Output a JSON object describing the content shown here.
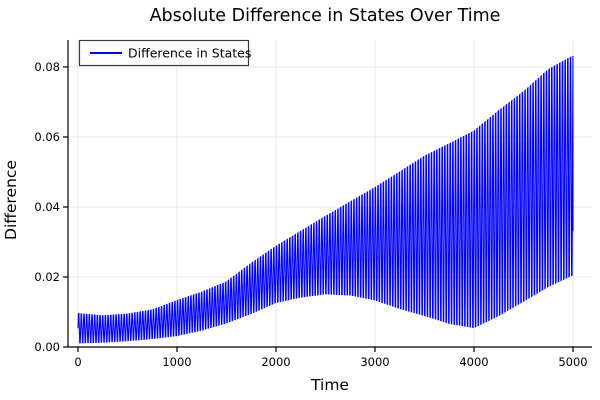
{
  "page": {
    "background": "#ffffff"
  },
  "chart_data": {
    "type": "line",
    "title": "Absolute Difference in States Over Time",
    "xlabel": "Time",
    "ylabel": "Difference",
    "xlim": [
      -101,
      5192
    ],
    "ylim": [
      0,
      0.0877
    ],
    "grid": true,
    "legend": {
      "position": "top-left",
      "entries": [
        {
          "label": "Difference in States",
          "color": "#0000ff"
        }
      ]
    },
    "x_ticks": [
      {
        "v": 0,
        "label": "0"
      },
      {
        "v": 1000,
        "label": "1000"
      },
      {
        "v": 2000,
        "label": "2000"
      },
      {
        "v": 3000,
        "label": "3000"
      },
      {
        "v": 4000,
        "label": "4000"
      },
      {
        "v": 5000,
        "label": "5000"
      }
    ],
    "y_ticks": [
      {
        "v": 0.0,
        "label": "0.00"
      },
      {
        "v": 0.02,
        "label": "0.02"
      },
      {
        "v": 0.04,
        "label": "0.04"
      },
      {
        "v": 0.06,
        "label": "0.06"
      },
      {
        "v": 0.08,
        "label": "0.08"
      }
    ],
    "series": [
      {
        "name": "Difference in States",
        "color": "#0000ff",
        "description": "High-frequency oscillation (|state1 - state2|) bounded by a growing upper envelope and a beating lower envelope with nodes near t=0 and t=4000 and an antinode near t=2500",
        "oscillation_period": 27,
        "samples_per_cycle": 6,
        "envelope_t": [
          0,
          250,
          500,
          750,
          1000,
          1250,
          1500,
          1750,
          2000,
          2250,
          2500,
          2750,
          3000,
          3250,
          3500,
          3750,
          4000,
          4250,
          4500,
          4750,
          5000
        ],
        "envelope_upper": [
          0.0102,
          0.0095,
          0.01,
          0.0112,
          0.014,
          0.0165,
          0.0195,
          0.025,
          0.03,
          0.0345,
          0.039,
          0.0435,
          0.048,
          0.053,
          0.058,
          0.062,
          0.066,
          0.072,
          0.0775,
          0.084,
          0.088
        ],
        "envelope_lower": [
          0.0005,
          0.0008,
          0.0012,
          0.0018,
          0.0025,
          0.004,
          0.006,
          0.0085,
          0.0115,
          0.0128,
          0.0135,
          0.0128,
          0.011,
          0.008,
          0.0055,
          0.0028,
          0.0012,
          0.0045,
          0.0085,
          0.0125,
          0.0158
        ],
        "end_point": {
          "t": 5000,
          "value": 0.033
        }
      }
    ],
    "colors": {
      "line": "#0000ff",
      "grid": "#e2e2e2",
      "axis": "#000000",
      "text": "#000000",
      "legend_border": "#3a3a3a",
      "legend_background": "#ffffff"
    }
  }
}
